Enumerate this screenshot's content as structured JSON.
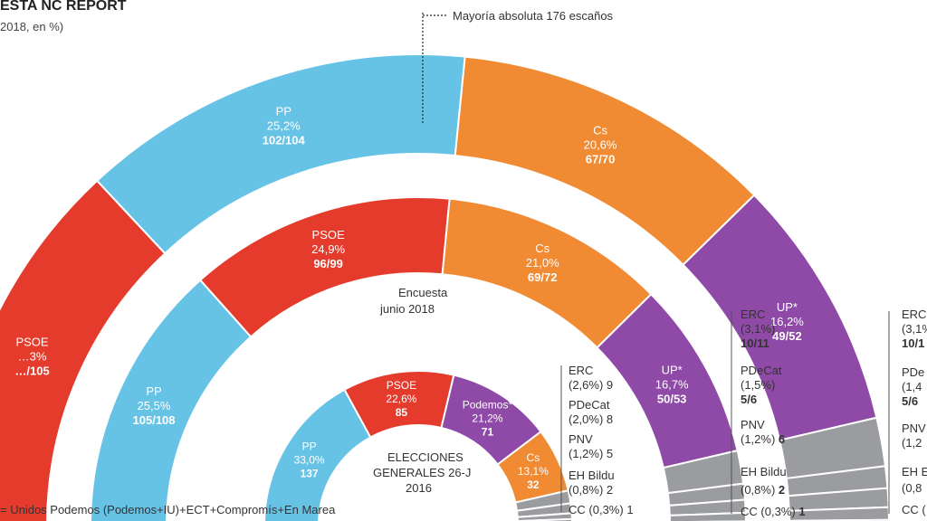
{
  "header": {
    "title": "ESTA NC REPORT",
    "subtitle": "2018, en %)"
  },
  "majority_label": "Mayoría absoluta 176 escaños",
  "footnote": "= Unidos Podemos (Podemos+IU)+ECT+Compromís+En Marea",
  "colors": {
    "PP": "#67c3e6",
    "PSOE": "#e53b2c",
    "Cs": "#f08a33",
    "UP": "#8e4aa6",
    "minor": "#9a9c9f",
    "text_light": "#ffffff"
  },
  "chart_data": [
    {
      "type": "pie",
      "ring": "outer",
      "segments": [
        {
          "party": "PSOE",
          "label": "PSOE",
          "pct_text": "…3%",
          "seats_text": "…/105",
          "value": 24.3
        },
        {
          "party": "PP",
          "label": "PP",
          "pct_text": "25,2%",
          "seats_text": "102/104",
          "value": 25.2
        },
        {
          "party": "Cs",
          "label": "Cs",
          "pct_text": "20,6%",
          "seats_text": "67/70",
          "value": 20.6
        },
        {
          "party": "UP",
          "label": "UP*",
          "pct_text": "16,2%",
          "seats_text": "49/52",
          "value": 16.2
        },
        {
          "party": "minor",
          "label": "ERC",
          "value": 3.1
        },
        {
          "party": "minor",
          "label": "PDeCat",
          "value": 1.4
        },
        {
          "party": "minor",
          "label": "PNV",
          "value": 1.2
        },
        {
          "party": "minor",
          "label": "EH Bildu",
          "value": 0.8
        },
        {
          "party": "minor",
          "label": "CC",
          "value": 0.3
        }
      ],
      "side_labels": [
        {
          "name": "ERC",
          "detail": "(3,1%",
          "seats": "10/1"
        },
        {
          "name": "PDe",
          "detail": "(1,4",
          "seats": "5/6"
        },
        {
          "name": "PNV",
          "detail": "(1,2",
          "seats": ""
        },
        {
          "name": "EH E",
          "detail": "(0,8",
          "seats": ""
        },
        {
          "name": "CC (",
          "detail": "",
          "seats": ""
        }
      ]
    },
    {
      "type": "pie",
      "ring": "middle",
      "center_label": [
        "Encuesta",
        "junio 2018"
      ],
      "segments": [
        {
          "party": "PP",
          "label": "PP",
          "pct_text": "25,5%",
          "seats_text": "105/108",
          "value": 25.5
        },
        {
          "party": "PSOE",
          "label": "PSOE",
          "pct_text": "24,9%",
          "seats_text": "96/99",
          "value": 24.9
        },
        {
          "party": "Cs",
          "label": "Cs",
          "pct_text": "21,0%",
          "seats_text": "69/72",
          "value": 21.0
        },
        {
          "party": "UP",
          "label": "UP*",
          "pct_text": "16,7%",
          "seats_text": "50/53",
          "value": 16.7
        },
        {
          "party": "minor",
          "label": "ERC",
          "value": 3.1
        },
        {
          "party": "minor",
          "label": "PDeCat",
          "value": 1.5
        },
        {
          "party": "minor",
          "label": "PNV",
          "value": 1.2
        },
        {
          "party": "minor",
          "label": "EH Bildu",
          "value": 0.8
        },
        {
          "party": "minor",
          "label": "CC",
          "value": 0.3
        }
      ],
      "side_labels": [
        {
          "name": "ERC",
          "detail": "(3,1%)",
          "seats": "10/11"
        },
        {
          "name": "PDeCat",
          "detail": "(1,5%)",
          "seats": "5/6"
        },
        {
          "name": "PNV",
          "detail": "(1,2%)",
          "seats": "6"
        },
        {
          "name": "EH Bildu",
          "detail": "(0,8%)",
          "seats": "2"
        },
        {
          "name": "CC",
          "detail": "(0,3%)",
          "seats": "1"
        }
      ]
    },
    {
      "type": "pie",
      "ring": "inner",
      "center_label": [
        "ELECCIONES",
        "GENERALES 26-J",
        "2016"
      ],
      "segments": [
        {
          "party": "PP",
          "label": "PP",
          "pct_text": "33,0%",
          "seats_text": "137",
          "value": 33.0
        },
        {
          "party": "PSOE",
          "label": "PSOE",
          "pct_text": "22,6%",
          "seats_text": "85",
          "value": 22.6
        },
        {
          "party": "UP",
          "label": "Podemos*",
          "pct_text": "21,2%",
          "seats_text": "71",
          "value": 21.2
        },
        {
          "party": "Cs",
          "label": "Cs",
          "pct_text": "13,1%",
          "seats_text": "32",
          "value": 13.1
        },
        {
          "party": "minor",
          "label": "ERC",
          "value": 2.6
        },
        {
          "party": "minor",
          "label": "PDeCat",
          "value": 2.0
        },
        {
          "party": "minor",
          "label": "PNV",
          "value": 1.2
        },
        {
          "party": "minor",
          "label": "EH Bildu",
          "value": 0.8
        },
        {
          "party": "minor",
          "label": "CC",
          "value": 0.3
        }
      ],
      "side_labels": [
        {
          "name": "ERC",
          "detail": "(2,6%)",
          "seats": "9"
        },
        {
          "name": "PDeCat",
          "detail": "(2,0%)",
          "seats": "8"
        },
        {
          "name": "PNV",
          "detail": "(1,2%)",
          "seats": "5"
        },
        {
          "name": "EH Bildu",
          "detail": "(0,8%)",
          "seats": "2"
        },
        {
          "name": "CC",
          "detail": "(0,3%)",
          "seats": "1"
        }
      ]
    }
  ]
}
